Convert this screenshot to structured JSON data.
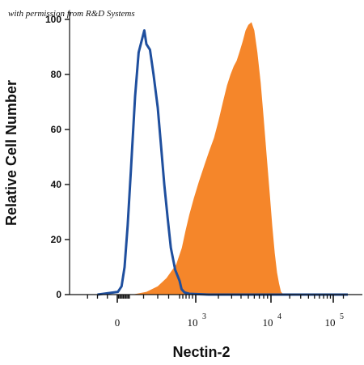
{
  "watermark": "with permission from R&D Systems",
  "colors": {
    "filled_series": "#f5862a",
    "outline_series": "#1f4f9e",
    "axis": "#111111"
  },
  "chart_data": {
    "type": "area",
    "xlabel": "Nectin-2",
    "ylabel": "Relative Cell Number",
    "x_scale": "biexponential",
    "xlim": [
      -40,
      130000
    ],
    "ylim": [
      0,
      100
    ],
    "y_ticks": [
      "0",
      "20",
      "40",
      "60",
      "80",
      "100"
    ],
    "x_ticks": [
      {
        "value": 0,
        "base": "0",
        "exp": ""
      },
      {
        "value": 1000,
        "base": "10",
        "exp": "3"
      },
      {
        "value": 10000,
        "base": "10",
        "exp": "4"
      },
      {
        "value": 100000,
        "base": "10",
        "exp": "5"
      }
    ],
    "grid": false,
    "series": [
      {
        "style": "filled",
        "color": "#f5862a",
        "points": [
          [
            120,
            0
          ],
          [
            220,
            1
          ],
          [
            300,
            3
          ],
          [
            380,
            6
          ],
          [
            470,
            11
          ],
          [
            570,
            17
          ],
          [
            680,
            23
          ],
          [
            800,
            29
          ],
          [
            940,
            35
          ],
          [
            1100,
            41
          ],
          [
            1300,
            47
          ],
          [
            1500,
            52
          ],
          [
            1750,
            57
          ],
          [
            2000,
            63
          ],
          [
            2300,
            70
          ],
          [
            2600,
            76
          ],
          [
            2900,
            80
          ],
          [
            3200,
            83
          ],
          [
            3500,
            85
          ],
          [
            3800,
            88
          ],
          [
            4200,
            92
          ],
          [
            4600,
            96
          ],
          [
            5000,
            98
          ],
          [
            5500,
            99
          ],
          [
            6000,
            96
          ],
          [
            6600,
            88
          ],
          [
            7300,
            77
          ],
          [
            8000,
            64
          ],
          [
            8800,
            50
          ],
          [
            9600,
            37
          ],
          [
            10500,
            25
          ],
          [
            11500,
            15
          ],
          [
            12500,
            8
          ],
          [
            13500,
            4
          ],
          [
            14500,
            1
          ],
          [
            16000,
            0
          ]
        ]
      },
      {
        "style": "outline",
        "color": "#1f4f9e",
        "points": [
          [
            -20,
            0
          ],
          [
            5,
            1
          ],
          [
            35,
            3
          ],
          [
            60,
            10
          ],
          [
            85,
            25
          ],
          [
            110,
            45
          ],
          [
            140,
            72
          ],
          [
            165,
            88
          ],
          [
            185,
            92
          ],
          [
            205,
            96
          ],
          [
            220,
            91
          ],
          [
            245,
            89
          ],
          [
            270,
            80
          ],
          [
            300,
            68
          ],
          [
            330,
            54
          ],
          [
            360,
            40
          ],
          [
            390,
            28
          ],
          [
            420,
            17
          ],
          [
            460,
            9
          ],
          [
            500,
            5
          ],
          [
            560,
            2
          ],
          [
            650,
            0.8
          ],
          [
            800,
            0.3
          ],
          [
            1500,
            0
          ],
          [
            130000,
            0
          ]
        ]
      }
    ]
  }
}
